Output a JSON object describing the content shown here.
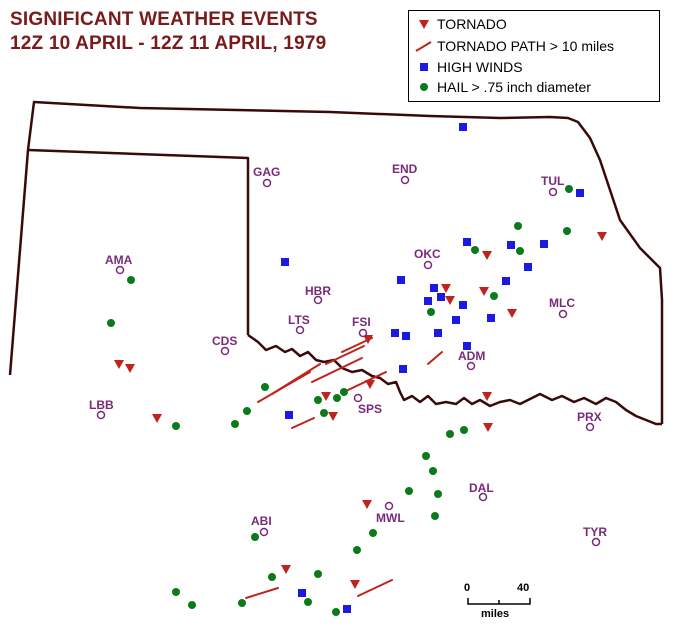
{
  "title": {
    "line1": "SIGNIFICANT WEATHER EVENTS",
    "line2": "12Z 10 APRIL - 12Z 11 APRIL, 1979"
  },
  "legend": {
    "tornado": "TORNADO",
    "tornado_path": "TORNADO PATH > 10 miles",
    "high_winds": "HIGH WINDS",
    "hail": "HAIL > .75 inch diameter"
  },
  "colors": {
    "tornado": "#c0231e",
    "high_winds": "#1a1ae0",
    "hail": "#0a7a1a",
    "city": "#7a2a7a",
    "border": "#3a0a0a"
  },
  "cities": [
    "GAG",
    "END",
    "TUL",
    "AMA",
    "OKC",
    "HBR",
    "LTS",
    "FSI",
    "CDS",
    "MLC",
    "ADM",
    "SPS",
    "LBB",
    "PRX",
    "DAL",
    "MWL",
    "ABI",
    "TYR"
  ],
  "scale": {
    "left_value": "0",
    "right_value": "40",
    "unit": "miles"
  }
}
